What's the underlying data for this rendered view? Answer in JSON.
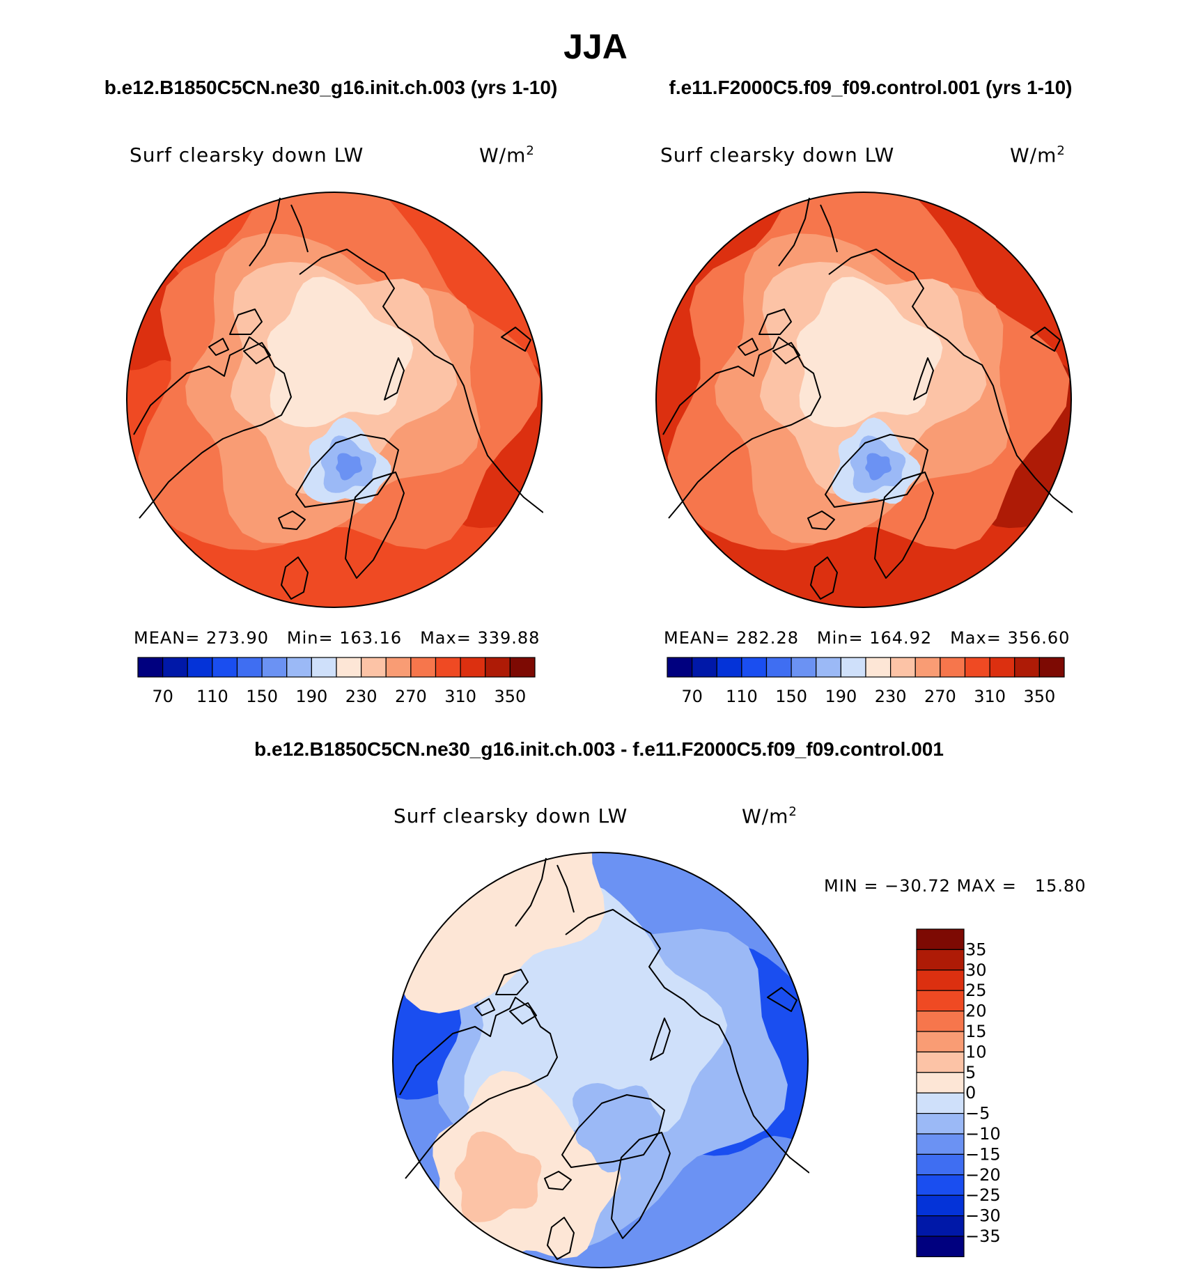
{
  "page_title": "JJA",
  "panels": [
    {
      "header": "b.e12.B1850C5CN.ne30_g16.init.ch.003 (yrs 1-10)",
      "variable": "Surf clearsky down LW",
      "units_base": "W/m",
      "units_exp": "2",
      "stats": {
        "mean_label": "MEAN=",
        "mean": "273.90",
        "min_label": "Min=",
        "min": "163.16",
        "max_label": "Max=",
        "max": "339.88"
      }
    },
    {
      "header": "f.e11.F2000C5.f09_f09.control.001 (yrs 1-10)",
      "variable": "Surf clearsky down LW",
      "units_base": "W/m",
      "units_exp": "2",
      "stats": {
        "mean_label": "MEAN=",
        "mean": "282.28",
        "min_label": "Min=",
        "min": "164.92",
        "max_label": "Max=",
        "max": "356.60"
      }
    }
  ],
  "difference": {
    "header": "b.e12.B1850C5CN.ne30_g16.init.ch.003 - f.e11.F2000C5.f09_f09.control.001",
    "variable": "Surf clearsky down LW",
    "units_base": "W/m",
    "units_exp": "2",
    "minmax": {
      "min_label": "MIN =",
      "min": "−30.72",
      "max_label": "MAX =",
      "max": "15.80"
    }
  },
  "chart_data": [
    {
      "type": "heatmap",
      "projection": "north polar stereographic",
      "title": "Surf clearsky down LW",
      "units": "W/m2",
      "mean": 273.9,
      "min": 163.16,
      "max": 339.88,
      "colorbar": {
        "orientation": "horizontal",
        "tick_labels": [
          "70",
          "110",
          "150",
          "190",
          "230",
          "270",
          "310",
          "350"
        ],
        "levels": [
          70,
          90,
          110,
          130,
          150,
          170,
          190,
          210,
          230,
          250,
          270,
          290,
          310,
          330,
          350
        ],
        "colors": [
          "#00007f",
          "#0018a8",
          "#0433d8",
          "#1a4ef0",
          "#3f6ef2",
          "#6b92f3",
          "#9bb9f6",
          "#cfe0fa",
          "#fde6d6",
          "#fcc3a6",
          "#f99c74",
          "#f6764c",
          "#ef4a23",
          "#dc3010",
          "#ae1b06",
          "#7d0a03"
        ]
      }
    },
    {
      "type": "heatmap",
      "projection": "north polar stereographic",
      "title": "Surf clearsky down LW",
      "units": "W/m2",
      "mean": 282.28,
      "min": 164.92,
      "max": 356.6,
      "colorbar": {
        "orientation": "horizontal",
        "tick_labels": [
          "70",
          "110",
          "150",
          "190",
          "230",
          "270",
          "310",
          "350"
        ],
        "levels": [
          70,
          90,
          110,
          130,
          150,
          170,
          190,
          210,
          230,
          250,
          270,
          290,
          310,
          330,
          350
        ],
        "colors": [
          "#00007f",
          "#0018a8",
          "#0433d8",
          "#1a4ef0",
          "#3f6ef2",
          "#6b92f3",
          "#9bb9f6",
          "#cfe0fa",
          "#fde6d6",
          "#fcc3a6",
          "#f99c74",
          "#f6764c",
          "#ef4a23",
          "#dc3010",
          "#ae1b06",
          "#7d0a03"
        ]
      }
    },
    {
      "type": "heatmap",
      "projection": "north polar stereographic",
      "title": "Surf clearsky down LW",
      "units": "W/m2",
      "min": -30.72,
      "max": 15.8,
      "colorbar": {
        "orientation": "vertical",
        "tick_labels": [
          "35",
          "30",
          "25",
          "20",
          "15",
          "10",
          "5",
          "0",
          "−5",
          "−10",
          "−15",
          "−20",
          "−25",
          "−30",
          "−35"
        ],
        "levels": [
          35,
          30,
          25,
          20,
          15,
          10,
          5,
          0,
          -5,
          -10,
          -15,
          -20,
          -25,
          -30,
          -35
        ],
        "colors": [
          "#7d0a03",
          "#ae1b06",
          "#dc3010",
          "#ef4a23",
          "#f6764c",
          "#f99c74",
          "#fcc3a6",
          "#fde6d6",
          "#cfe0fa",
          "#9bb9f6",
          "#6b92f3",
          "#3f6ef2",
          "#1a4ef0",
          "#0433d8",
          "#0018a8",
          "#00007f"
        ]
      }
    }
  ]
}
